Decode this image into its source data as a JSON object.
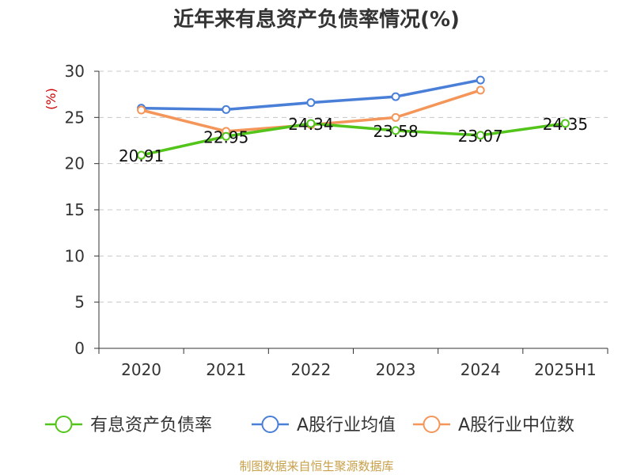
{
  "title": "近年来有息资产负债率情况(%)",
  "source": "制图数据来自恒生聚源数据库",
  "chart_data": {
    "type": "line",
    "title": "近年来有息资产负债率情况(%)",
    "ylabel": "(%)",
    "xlabel": "",
    "ylim": [
      0,
      30
    ],
    "yticks": [
      0,
      5,
      10,
      15,
      20,
      25,
      30
    ],
    "grid": true,
    "legend_position": "bottom",
    "categories": [
      "2020",
      "2021",
      "2022",
      "2023",
      "2024",
      "2025H1"
    ],
    "series": [
      {
        "name": "有息资产负债率",
        "color": "#52c41a",
        "values": [
          20.91,
          22.95,
          24.34,
          23.58,
          23.07,
          24.35
        ],
        "labels": [
          "20.91",
          "22.95",
          "24.34",
          "23.58",
          "23.07",
          "24.35"
        ]
      },
      {
        "name": "A股行业均值",
        "color": "#4a7fd8",
        "values": [
          26.0,
          25.85,
          26.6,
          27.25,
          29.05,
          null
        ]
      },
      {
        "name": "A股行业中位数",
        "color": "#f4965a",
        "values": [
          25.8,
          23.5,
          24.2,
          25.0,
          27.95,
          null
        ]
      }
    ]
  }
}
